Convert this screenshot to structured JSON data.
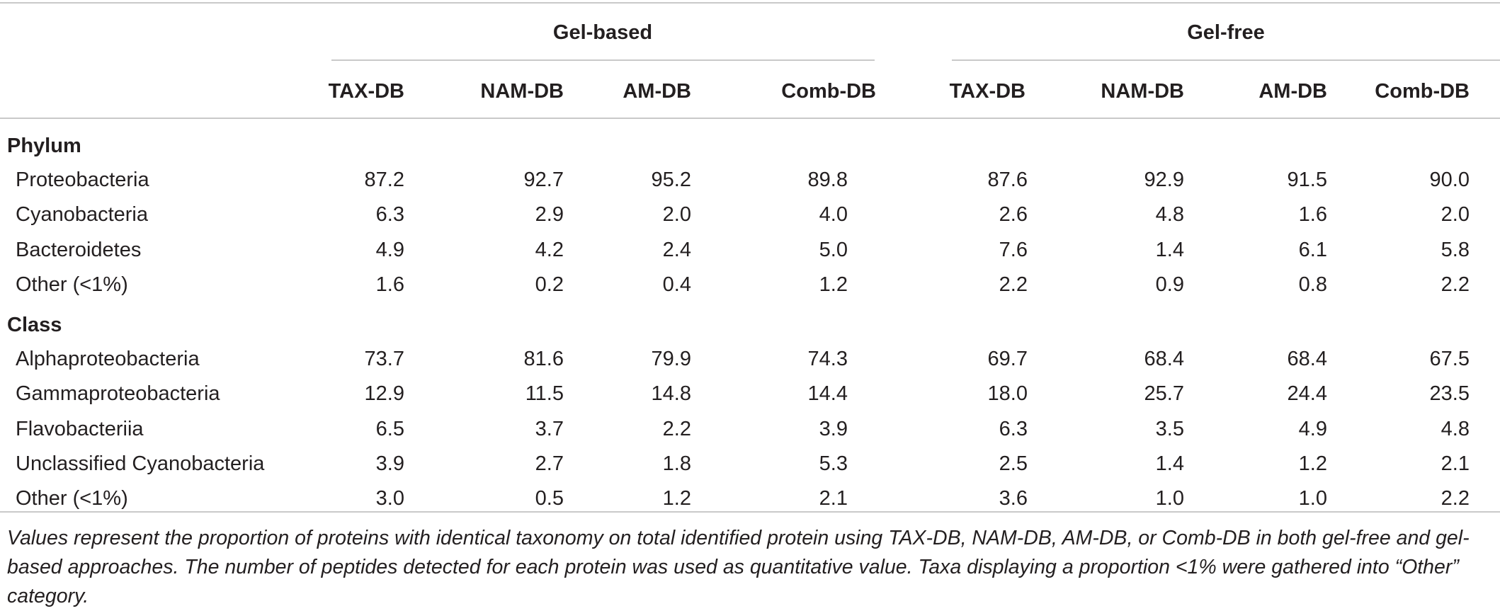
{
  "groups": [
    {
      "label": "Gel-based"
    },
    {
      "label": "Gel-free"
    }
  ],
  "columns": [
    "TAX-DB",
    "NAM-DB",
    "AM-DB",
    "Comb-DB",
    "TAX-DB",
    "NAM-DB",
    "AM-DB",
    "Comb-DB"
  ],
  "sections": [
    {
      "title": "Phylum",
      "rows": [
        {
          "label": "Proteobacteria",
          "values": [
            "87.2",
            "92.7",
            "95.2",
            "89.8",
            "87.6",
            "92.9",
            "91.5",
            "90.0"
          ]
        },
        {
          "label": "Cyanobacteria",
          "values": [
            "6.3",
            "2.9",
            "2.0",
            "4.0",
            "2.6",
            "4.8",
            "1.6",
            "2.0"
          ]
        },
        {
          "label": "Bacteroidetes",
          "values": [
            "4.9",
            "4.2",
            "2.4",
            "5.0",
            "7.6",
            "1.4",
            "6.1",
            "5.8"
          ]
        },
        {
          "label": "Other (<1%)",
          "values": [
            "1.6",
            "0.2",
            "0.4",
            "1.2",
            "2.2",
            "0.9",
            "0.8",
            "2.2"
          ]
        }
      ]
    },
    {
      "title": "Class",
      "rows": [
        {
          "label": "Alphaproteobacteria",
          "values": [
            "73.7",
            "81.6",
            "79.9",
            "74.3",
            "69.7",
            "68.4",
            "68.4",
            "67.5"
          ]
        },
        {
          "label": "Gammaproteobacteria",
          "values": [
            "12.9",
            "11.5",
            "14.8",
            "14.4",
            "18.0",
            "25.7",
            "24.4",
            "23.5"
          ]
        },
        {
          "label": "Flavobacteriia",
          "values": [
            "6.5",
            "3.7",
            "2.2",
            "3.9",
            "6.3",
            "3.5",
            "4.9",
            "4.8"
          ]
        },
        {
          "label": "Unclassified Cyanobacteria",
          "values": [
            "3.9",
            "2.7",
            "1.8",
            "5.3",
            "2.5",
            "1.4",
            "1.2",
            "2.1"
          ]
        },
        {
          "label": "Other (<1%)",
          "values": [
            "3.0",
            "0.5",
            "1.2",
            "2.1",
            "3.6",
            "1.0",
            "1.0",
            "2.2"
          ]
        }
      ]
    }
  ],
  "caption": "Values represent the proportion of proteins with identical taxonomy on total identified protein using TAX-DB, NAM-DB, AM-DB, or Comb-DB in both gel-free and gel-based approaches. The number of peptides detected for each protein was used as quantitative value. Taxa displaying a proportion <1% were gathered into “Other” category."
}
